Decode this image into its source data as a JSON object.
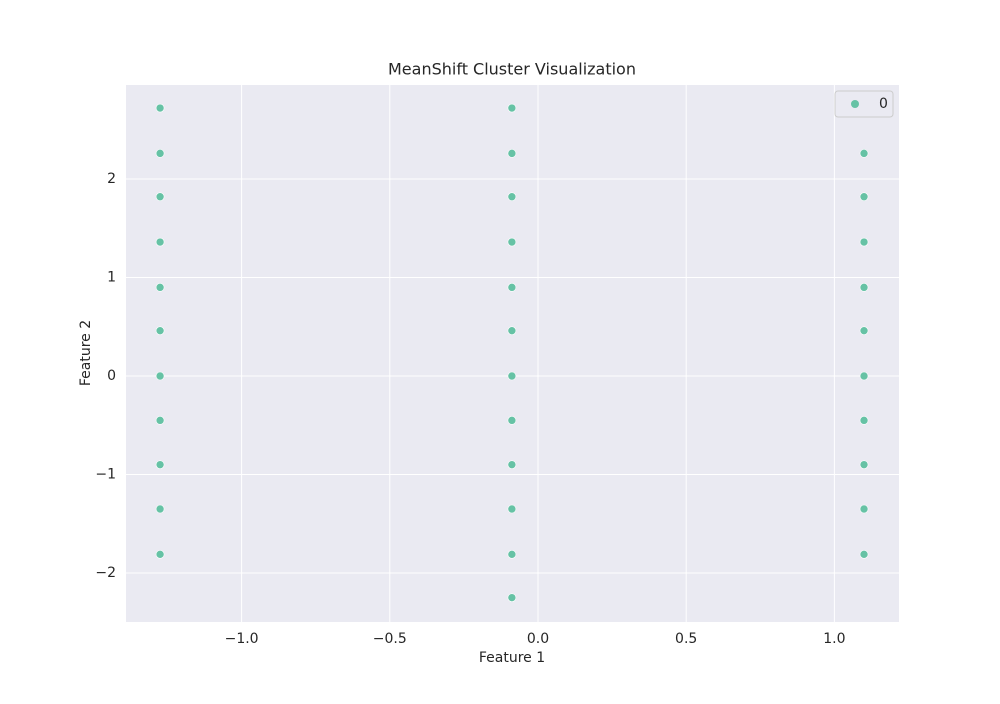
{
  "chart_data": {
    "type": "scatter",
    "title": "MeanShift Cluster Visualization",
    "x_label": "Feature 1",
    "y_label": "Feature 2",
    "series": [
      {
        "name": "0",
        "color": "#66c2a5",
        "x": [
          -1.275,
          -1.275,
          -1.275,
          -1.275,
          -1.275,
          -1.275,
          -1.275,
          -1.275,
          -1.275,
          -1.275,
          -1.275,
          -0.088,
          -0.088,
          -0.088,
          -0.088,
          -0.088,
          -0.088,
          -0.088,
          -0.088,
          -0.088,
          -0.088,
          -0.088,
          -0.088,
          1.1,
          1.1,
          1.1,
          1.1,
          1.1,
          1.1,
          1.1,
          1.1,
          1.1,
          1.1
        ],
        "values": [
          2.72,
          2.26,
          1.82,
          1.36,
          0.9,
          0.46,
          0,
          -0.45,
          -0.9,
          -1.35,
          -1.81,
          2.72,
          2.26,
          1.82,
          1.36,
          0.9,
          0.46,
          0,
          -0.45,
          -0.9,
          -1.35,
          -1.81,
          -2.25,
          2.26,
          1.82,
          1.36,
          0.9,
          0.46,
          0,
          -0.45,
          -0.9,
          -1.35,
          -1.81
        ]
      }
    ],
    "xlim": [
      -1.39,
      1.218
    ],
    "ylim": [
      -2.497,
      2.954
    ],
    "xticks": [
      {
        "value": -1,
        "label": "−1.0"
      },
      {
        "value": -0.5,
        "label": "−0.5"
      },
      {
        "value": 0,
        "label": "0.0"
      },
      {
        "value": 0.5,
        "label": "0.5"
      },
      {
        "value": 1,
        "label": "1.0"
      }
    ],
    "yticks": [
      {
        "value": -2,
        "label": "−2"
      },
      {
        "value": -1,
        "label": "−1"
      },
      0,
      1,
      2
    ],
    "grid": true,
    "legend": "upper right"
  }
}
